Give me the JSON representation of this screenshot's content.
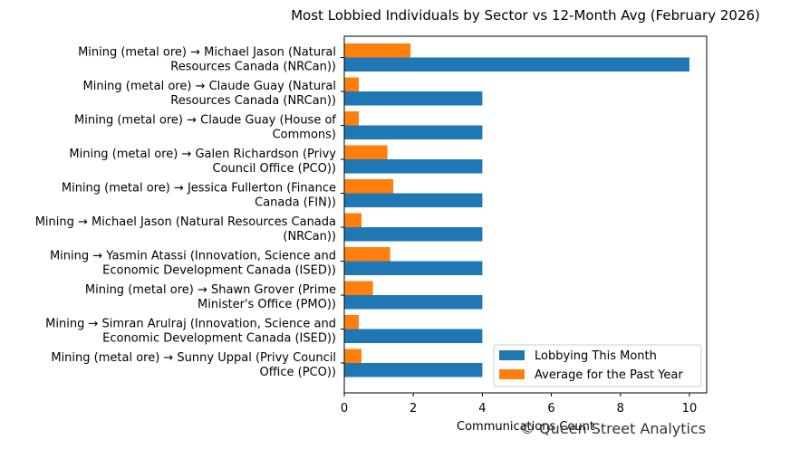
{
  "chart_data": {
    "type": "bar",
    "orientation": "horizontal",
    "title": "Most Lobbied Individuals by Sector vs 12-Month Avg (February 2026)",
    "xlabel": "Communications Count",
    "ylabel": "",
    "xlim": [
      0,
      10.5
    ],
    "xticks": [
      0,
      2,
      4,
      6,
      8,
      10
    ],
    "grid": false,
    "legend_position": "lower-right",
    "categories": [
      [
        "Mining (metal ore) → Michael Jason (Natural",
        "Resources Canada (NRCan))"
      ],
      [
        "Mining (metal ore) → Claude Guay (Natural",
        "Resources Canada (NRCan))"
      ],
      [
        "Mining (metal ore) → Claude Guay (House of",
        "Commons)"
      ],
      [
        "Mining (metal ore) → Galen Richardson (Privy",
        "Council Office (PCO))"
      ],
      [
        "Mining (metal ore) → Jessica Fullerton (Finance",
        "Canada (FIN))"
      ],
      [
        "Mining → Michael Jason (Natural Resources Canada",
        "(NRCan))"
      ],
      [
        "Mining → Yasmin Atassi (Innovation, Science and",
        "Economic Development Canada (ISED))"
      ],
      [
        "Mining (metal ore) → Shawn Grover (Prime",
        "Minister's Office (PMO))"
      ],
      [
        "Mining → Simran Arulraj (Innovation, Science and",
        "Economic Development Canada (ISED))"
      ],
      [
        "Mining (metal ore) → Sunny Uppal (Privy Council",
        "Office (PCO))"
      ]
    ],
    "series": [
      {
        "name": "Lobbying This Month",
        "color": "#1f77b4",
        "values": [
          10,
          4,
          4,
          4,
          4,
          4,
          4,
          4,
          4,
          4
        ]
      },
      {
        "name": "Average for the Past Year",
        "color": "#ff7f0e",
        "values": [
          1.92,
          0.42,
          0.42,
          1.25,
          1.42,
          0.5,
          1.33,
          0.83,
          0.42,
          0.5
        ]
      }
    ]
  },
  "watermark": "© Queen Street Analytics"
}
